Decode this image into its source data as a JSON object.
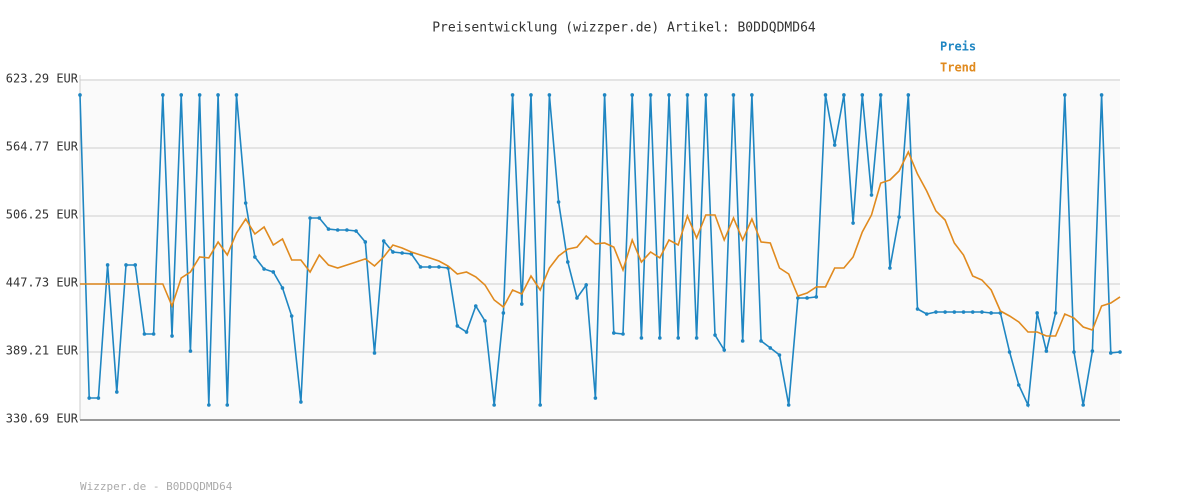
{
  "chart_data": {
    "type": "line",
    "title": "Preisentwicklung (wizzper.de) Artikel: B0DDQDMD64",
    "footer": "Wizzper.de - B0DDQDMD64",
    "ylim": [
      330.69,
      623.29
    ],
    "yticks": [
      {
        "value": 330.69,
        "label": "330.69 EUR"
      },
      {
        "value": 389.21,
        "label": "389.21 EUR"
      },
      {
        "value": 447.73,
        "label": "447.73 EUR"
      },
      {
        "value": 506.25,
        "label": "506.25 EUR"
      },
      {
        "value": 564.77,
        "label": "564.77 EUR"
      },
      {
        "value": 623.29,
        "label": "623.29 EUR"
      }
    ],
    "grid": true,
    "legend": "top-right",
    "series": [
      {
        "name": "Preis",
        "color": "#1f86c2",
        "values": [
          610.4,
          349.6,
          349.6,
          464.1,
          354.8,
          464.1,
          464.1,
          404.7,
          404.7,
          610.4,
          403,
          610.4,
          390,
          610.4,
          343.6,
          610.4,
          343.6,
          610.4,
          517.4,
          471,
          460.6,
          458.1,
          444.3,
          420.2,
          346.2,
          504.5,
          504.5,
          495,
          494.2,
          494.2,
          493.3,
          483.9,
          388.4,
          484.7,
          475.3,
          474.4,
          473.6,
          462.4,
          462.4,
          462.4,
          461.5,
          411.6,
          406.4,
          428.8,
          415.9,
          343.6,
          422.8,
          610.4,
          430.5,
          610.4,
          343.6,
          610.4,
          518.3,
          466.7,
          435.7,
          446.9,
          349.6,
          610.4,
          405.6,
          404.7,
          610.4,
          401.3,
          610.4,
          401.3,
          610.4,
          401.3,
          610.4,
          401.3,
          610.4,
          403.8,
          390.9,
          610.4,
          398.7,
          610.4,
          398.7,
          392.7,
          386.6,
          343.6,
          435.7,
          435.7,
          436.6,
          610.4,
          567.3,
          610.4,
          500.2,
          610.4,
          524.3,
          610.4,
          461.5,
          505.4,
          610.4,
          426.2,
          421.9,
          423.6,
          423.6,
          423.6,
          423.6,
          423.6,
          423.6,
          422.8,
          422.8,
          389.2,
          360.8,
          343.6,
          422.8,
          390,
          422.8,
          610.4,
          389.2,
          343.6,
          390,
          610.4,
          388.4,
          389.2
        ]
      },
      {
        "name": "Trend",
        "color": "#e08a1e",
        "values": [
          447.7,
          447.7,
          447.7,
          447.7,
          447.7,
          447.7,
          447.7,
          447.7,
          447.7,
          447.7,
          428.8,
          452.9,
          458.1,
          471,
          470.2,
          483.9,
          472.7,
          491.6,
          503.7,
          490.8,
          496.8,
          481.3,
          486.5,
          468.4,
          468.4,
          458.1,
          472.7,
          464.1,
          461.5,
          464.1,
          466.7,
          469.3,
          463.2,
          471,
          481.3,
          478.7,
          475.3,
          472.7,
          470.2,
          467.5,
          463.2,
          456.3,
          458.1,
          453.8,
          446.9,
          434,
          427.9,
          442.6,
          439.1,
          454.6,
          442.6,
          461.5,
          471.8,
          477.8,
          479.5,
          489,
          482.2,
          483,
          479.5,
          459.8,
          485.6,
          466.7,
          475.3,
          470.2,
          485.6,
          481.3,
          506.3,
          487.3,
          507.1,
          507.1,
          485.6,
          504.5,
          485.6,
          503.7,
          483.9,
          483,
          461.5,
          456.3,
          437.4,
          440,
          445.2,
          445.2,
          461.5,
          461.5,
          471,
          492.5,
          507.1,
          534.6,
          537.2,
          545,
          561.3,
          542.4,
          527.8,
          510.6,
          502.8,
          483,
          472.7,
          454.6,
          451.2,
          442.6,
          424.5,
          420.2,
          415,
          406.4,
          406.4,
          403,
          403,
          421.9,
          418.5,
          410.7,
          408.1,
          428.8,
          431.4,
          436.6
        ]
      }
    ]
  }
}
